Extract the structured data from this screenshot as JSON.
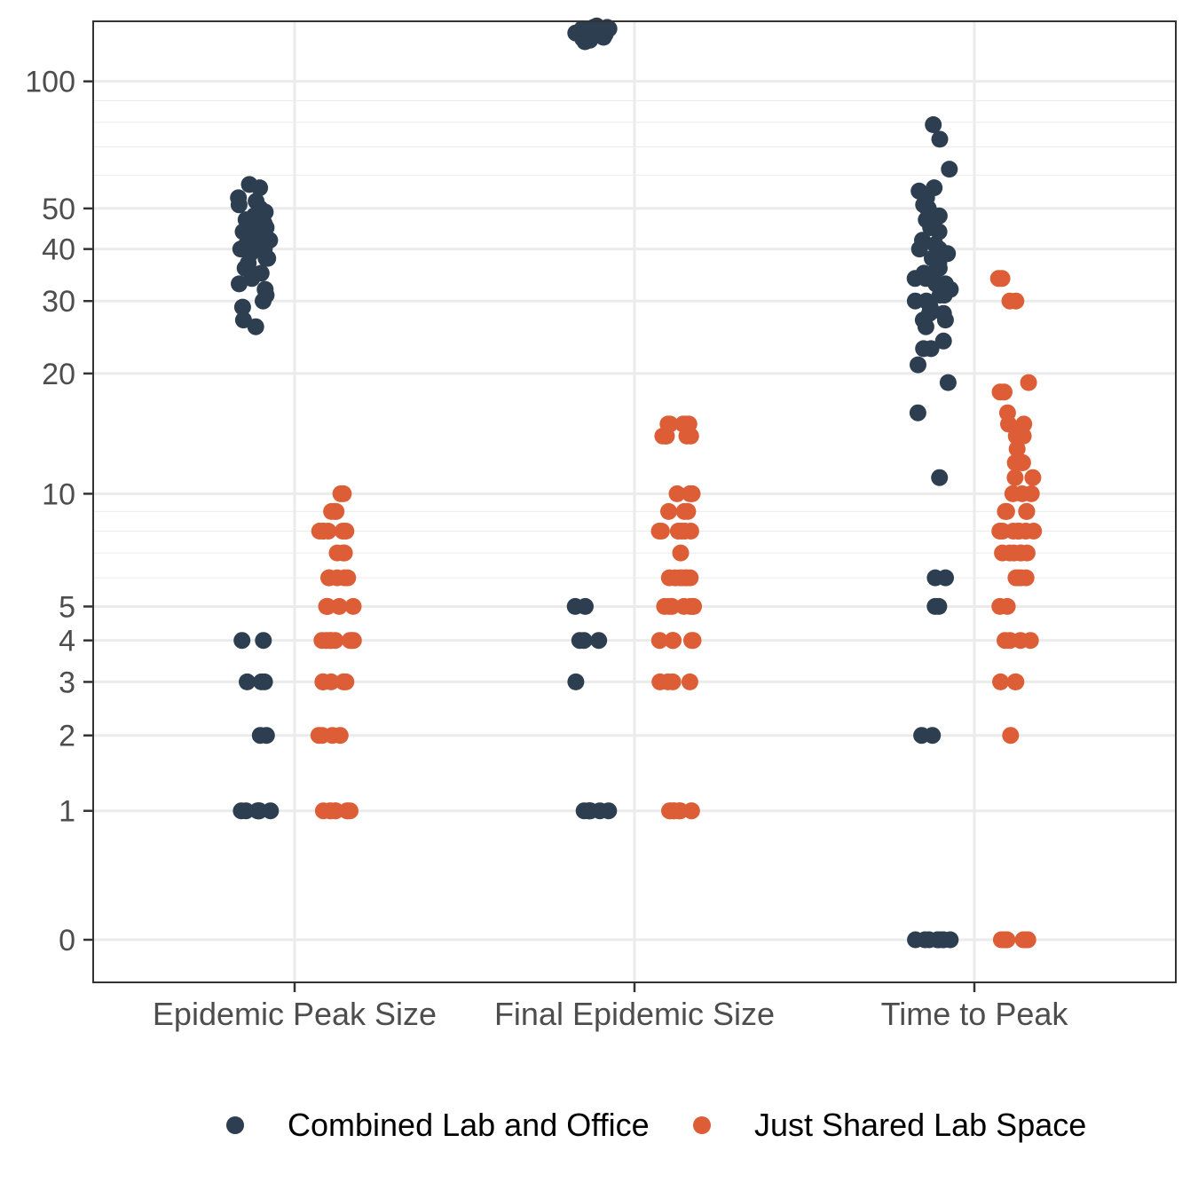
{
  "chart_data": {
    "type": "scatter",
    "subtype": "jitter-strip",
    "y_scale": "log1p",
    "ylim": [
      0,
      200
    ],
    "y_ticks": [
      "0",
      "1",
      "2",
      "3",
      "4",
      "5",
      "10",
      "20",
      "30",
      "40",
      "50",
      "100",
      "200"
    ],
    "grid": true,
    "legend_position": "bottom",
    "categories": [
      "Epidemic Peak Size",
      "Final Epidemic Size",
      "Time to Peak"
    ],
    "series": [
      {
        "name": "Combined Lab and Office",
        "color": "#2c3e50",
        "values": [
          [
            1,
            1,
            1,
            1,
            1,
            1,
            1,
            2,
            2,
            3,
            3,
            3,
            4,
            4,
            26,
            27,
            29,
            30,
            31,
            32,
            33,
            34,
            35,
            36,
            36,
            37,
            38,
            38,
            39,
            39,
            40,
            40,
            40,
            41,
            41,
            42,
            42,
            43,
            43,
            44,
            45,
            45,
            46,
            47,
            48,
            49,
            50,
            51,
            52,
            53,
            56,
            57
          ],
          [
            1,
            1,
            1,
            1,
            1,
            1,
            1,
            3,
            4,
            4,
            4,
            5,
            5,
            124,
            125,
            126,
            127,
            128,
            128,
            129,
            129,
            130,
            130,
            130,
            131,
            131,
            131,
            132,
            132,
            133,
            133,
            134,
            134,
            135
          ],
          [
            0,
            0,
            0,
            0,
            0,
            0,
            0,
            0,
            0,
            2,
            2,
            5,
            5,
            6,
            6,
            11,
            16,
            19,
            21,
            23,
            23,
            24,
            26,
            27,
            27,
            28,
            28,
            29,
            30,
            30,
            31,
            31,
            32,
            32,
            33,
            33,
            34,
            34,
            35,
            35,
            36,
            36,
            37,
            38,
            38,
            39,
            40,
            40,
            41,
            42,
            44,
            45,
            47,
            48,
            50,
            50,
            51,
            53,
            55,
            56,
            62,
            73,
            79
          ]
        ]
      },
      {
        "name": "Just Shared Lab Space",
        "color": "#dd5e36",
        "values": [
          [
            1,
            1,
            1,
            1,
            1,
            1,
            1,
            1,
            2,
            2,
            2,
            2,
            3,
            3,
            3,
            3,
            3,
            3,
            3,
            4,
            4,
            4,
            4,
            4,
            4,
            4,
            4,
            5,
            5,
            5,
            5,
            5,
            6,
            6,
            6,
            6,
            6,
            7,
            7,
            7,
            8,
            8,
            8,
            8,
            8,
            8,
            9,
            9,
            9,
            10,
            10
          ],
          [
            1,
            1,
            1,
            1,
            1,
            1,
            1,
            1,
            1,
            3,
            3,
            3,
            3,
            4,
            4,
            4,
            4,
            4,
            4,
            5,
            5,
            5,
            5,
            5,
            5,
            5,
            6,
            6,
            6,
            6,
            6,
            6,
            6,
            7,
            8,
            8,
            8,
            8,
            8,
            8,
            9,
            9,
            9,
            10,
            10,
            10,
            14,
            14,
            14,
            14,
            14,
            15,
            15,
            15,
            15,
            15
          ],
          [
            0,
            0,
            0,
            0,
            0,
            0,
            0,
            0,
            0,
            2,
            3,
            3,
            3,
            4,
            4,
            4,
            4,
            5,
            5,
            6,
            6,
            6,
            6,
            7,
            7,
            7,
            7,
            7,
            7,
            8,
            8,
            8,
            8,
            8,
            8,
            8,
            9,
            9,
            9,
            9,
            10,
            10,
            10,
            11,
            11,
            12,
            12,
            12,
            13,
            14,
            14,
            15,
            15,
            16,
            18,
            18,
            19,
            30,
            30,
            34,
            34
          ]
        ]
      }
    ]
  }
}
